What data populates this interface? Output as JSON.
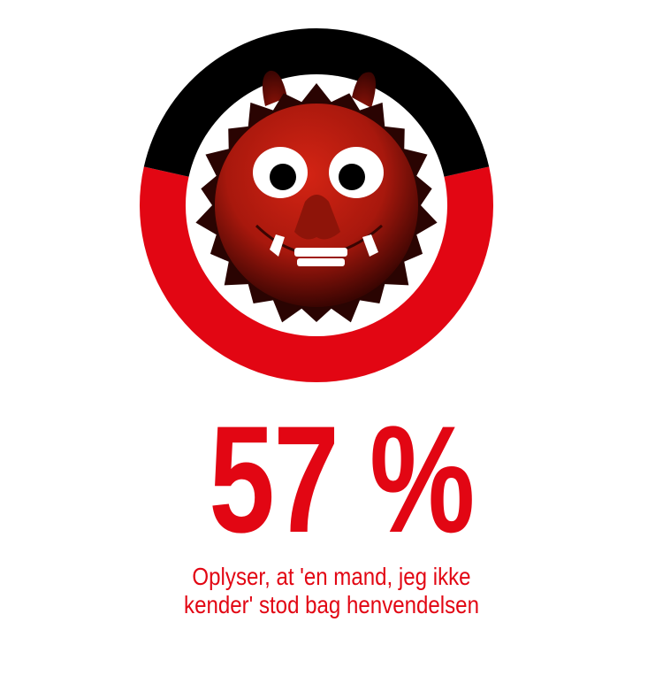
{
  "chart_data": {
    "type": "pie",
    "variant": "donut",
    "values": [
      57,
      43
    ],
    "colors": [
      "#e20613",
      "#000000"
    ],
    "value_label": "57 %",
    "caption_lines": [
      "Oplyser, at 'en mand, jeg ikke",
      "kender' stod bag henvendelsen"
    ],
    "center_icon": "red-troll-monster-icon"
  }
}
